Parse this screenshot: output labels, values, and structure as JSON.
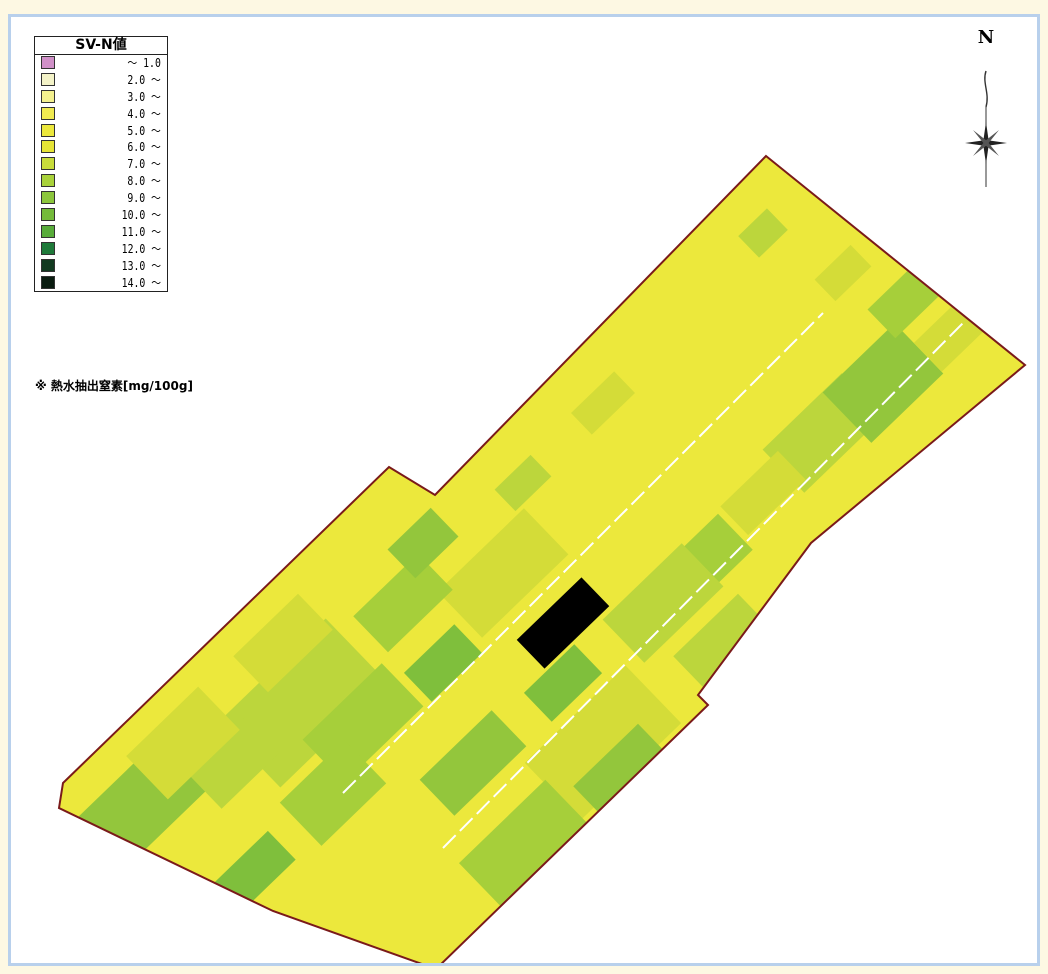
{
  "legend": {
    "title": "SV-N値",
    "items": [
      {
        "label": "～ 1.0",
        "color": "#d090c8"
      },
      {
        "label": "2.0 ～",
        "color": "#f4f3c8"
      },
      {
        "label": "3.0 ～",
        "color": "#f3f08e"
      },
      {
        "label": "4.0 ～",
        "color": "#f0ea50"
      },
      {
        "label": "5.0 ～",
        "color": "#ece83c"
      },
      {
        "label": "6.0 ～",
        "color": "#e6e436"
      },
      {
        "label": "7.0 ～",
        "color": "#c8dc3a"
      },
      {
        "label": "8.0 ～",
        "color": "#a9d23a"
      },
      {
        "label": "9.0 ～",
        "color": "#8cc63c"
      },
      {
        "label": "10.0 ～",
        "color": "#74ba3a"
      },
      {
        "label": "11.0 ～",
        "color": "#58ac3a"
      },
      {
        "label": "12.0 ～",
        "color": "#1f7a3a"
      },
      {
        "label": "13.0 ～",
        "color": "#123a20"
      },
      {
        "label": "14.0 ～",
        "color": "#0a1c10"
      }
    ],
    "note": "※ 熱水抽出窒素[mg/100g]"
  },
  "compass": {
    "letter": "N"
  },
  "map": {
    "field_color": "#ece83c",
    "boundary_color": "#7a1a1a",
    "zone_colors": [
      "#d4dc38",
      "#bcd63c",
      "#a6cf3a",
      "#93c63c",
      "#7fbf3c"
    ],
    "lane_color": "#ffffff"
  }
}
